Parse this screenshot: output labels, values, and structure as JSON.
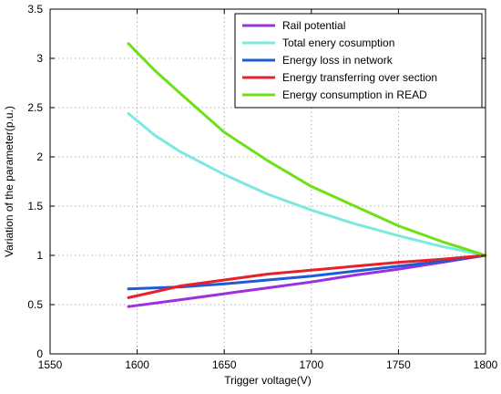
{
  "chart_data": {
    "type": "line",
    "xlabel": "Trigger voltage(V)",
    "ylabel": "Variation of the parameter(p.u.)",
    "xlim": [
      1550,
      1800
    ],
    "ylim": [
      0,
      3.5
    ],
    "xticks": [
      1550,
      1600,
      1650,
      1700,
      1750,
      1800
    ],
    "yticks": [
      0,
      0.5,
      1,
      1.5,
      2,
      2.5,
      3,
      3.5
    ],
    "xtick_labels": [
      "1550",
      "1600",
      "1650",
      "1700",
      "1750",
      "1800"
    ],
    "ytick_labels": [
      "0",
      "0.5",
      "1",
      "1.5",
      "2",
      "2.5",
      "3",
      "3.5"
    ],
    "grid": true,
    "legend_position": "top-right",
    "series": [
      {
        "name": "Rail potential",
        "color": "#9b30e0",
        "x": [
          1595,
          1625,
          1650,
          1675,
          1700,
          1725,
          1750,
          1775,
          1800
        ],
        "y": [
          0.48,
          0.55,
          0.61,
          0.67,
          0.73,
          0.8,
          0.86,
          0.93,
          1.0
        ]
      },
      {
        "name": "Total enery cosumption",
        "color": "#7de8e0",
        "x": [
          1595,
          1610,
          1625,
          1650,
          1675,
          1700,
          1725,
          1750,
          1775,
          1800
        ],
        "y": [
          2.44,
          2.22,
          2.05,
          1.82,
          1.62,
          1.46,
          1.32,
          1.2,
          1.09,
          1.0
        ]
      },
      {
        "name": "Energy loss in network",
        "color": "#1e5cd6",
        "x": [
          1595,
          1625,
          1650,
          1675,
          1700,
          1725,
          1750,
          1775,
          1800
        ],
        "y": [
          0.66,
          0.68,
          0.71,
          0.75,
          0.79,
          0.84,
          0.89,
          0.94,
          1.0
        ]
      },
      {
        "name": "Energy transferring over section",
        "color": "#e8202a",
        "x": [
          1595,
          1610,
          1625,
          1650,
          1675,
          1700,
          1725,
          1750,
          1775,
          1800
        ],
        "y": [
          0.57,
          0.63,
          0.69,
          0.75,
          0.81,
          0.85,
          0.89,
          0.93,
          0.96,
          1.0
        ]
      },
      {
        "name": "Energy consumption in READ",
        "color": "#6ee018",
        "x": [
          1595,
          1610,
          1625,
          1650,
          1675,
          1700,
          1725,
          1750,
          1775,
          1800
        ],
        "y": [
          3.15,
          2.88,
          2.64,
          2.25,
          1.96,
          1.7,
          1.5,
          1.3,
          1.14,
          1.0
        ]
      }
    ]
  }
}
